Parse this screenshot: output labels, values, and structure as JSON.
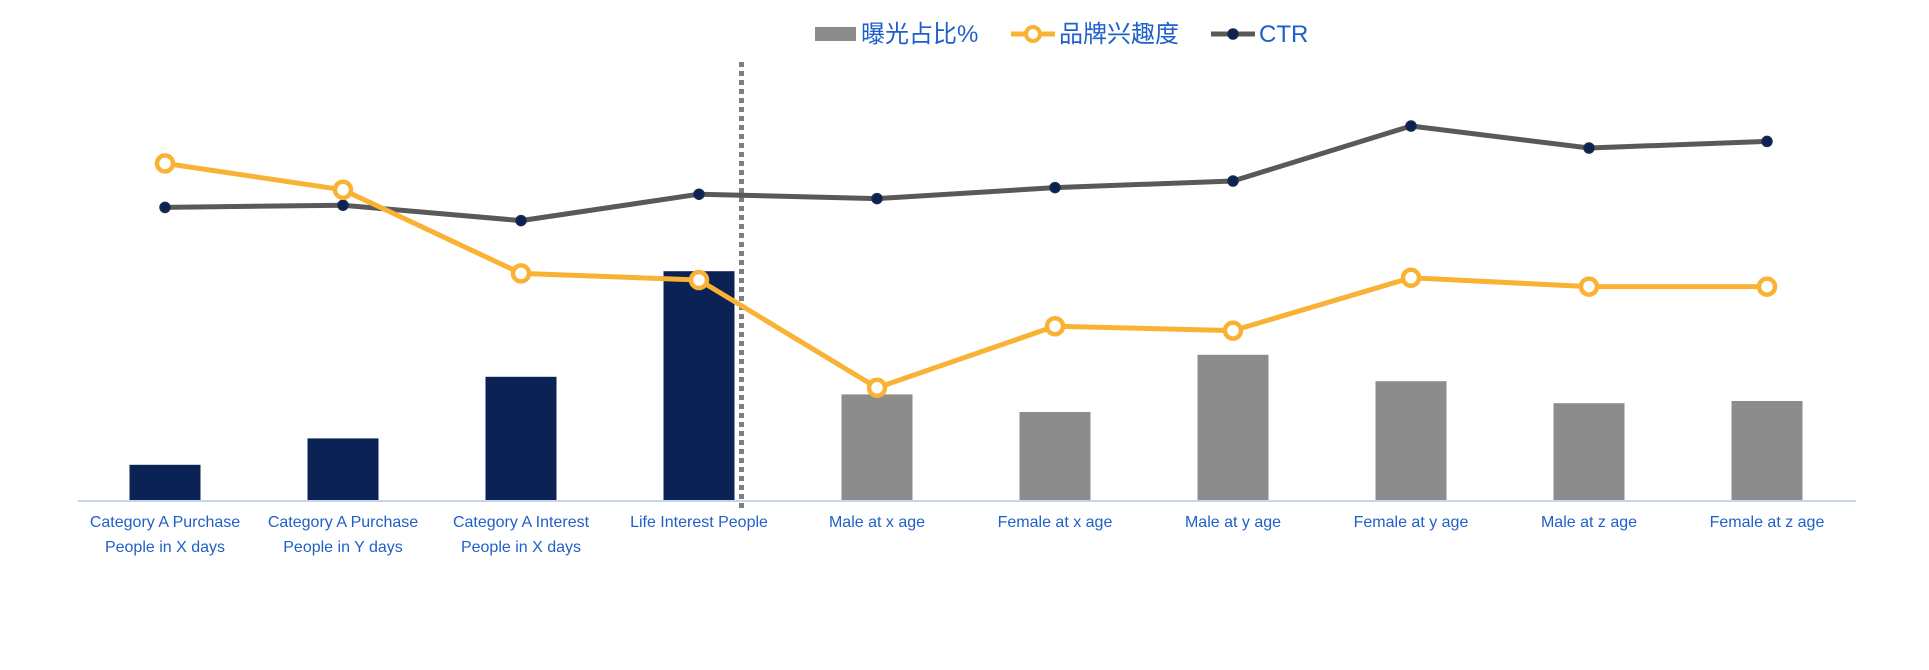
{
  "chart_data": {
    "type": "bar",
    "categories": [
      [
        "Category A Purchase",
        "People in X days"
      ],
      [
        "Category A Purchase",
        "People in Y days"
      ],
      [
        "Category A Interest",
        "People in X days"
      ],
      [
        "Life Interest People"
      ],
      [
        "Male at x age"
      ],
      [
        "Female at x age"
      ],
      [
        "Male at y age"
      ],
      [
        "Female at y age"
      ],
      [
        "Male at z age"
      ],
      [
        "Female at z age"
      ]
    ],
    "series": [
      {
        "name": "曝光占比%",
        "type": "bar",
        "values": [
          8,
          14,
          28,
          52,
          24,
          20,
          33,
          27,
          22,
          22.5
        ],
        "colors": [
          "#0b2354",
          "#0b2354",
          "#0b2354",
          "#0b2354",
          "#8c8c8c",
          "#8c8c8c",
          "#8c8c8c",
          "#8c8c8c",
          "#8c8c8c",
          "#8c8c8c"
        ]
      },
      {
        "name": "品牌兴趣度",
        "type": "line",
        "marker": "hollow-circle",
        "color": "#f9b233",
        "values": [
          76.5,
          70.5,
          51.5,
          50,
          25.5,
          39.5,
          38.5,
          50.5,
          48.5,
          48.5
        ]
      },
      {
        "name": "CTR",
        "type": "line",
        "marker": "dot",
        "color": "#595959",
        "values": [
          66.5,
          67,
          63.5,
          69.5,
          68.5,
          71,
          72.5,
          85,
          80,
          81.5
        ]
      }
    ],
    "ylim": [
      0,
      100
    ],
    "grid": false,
    "legend": "top-center",
    "divider_after_category": 3,
    "axis_color": "#b4c7e7",
    "label_color": "#1f5fc9"
  }
}
